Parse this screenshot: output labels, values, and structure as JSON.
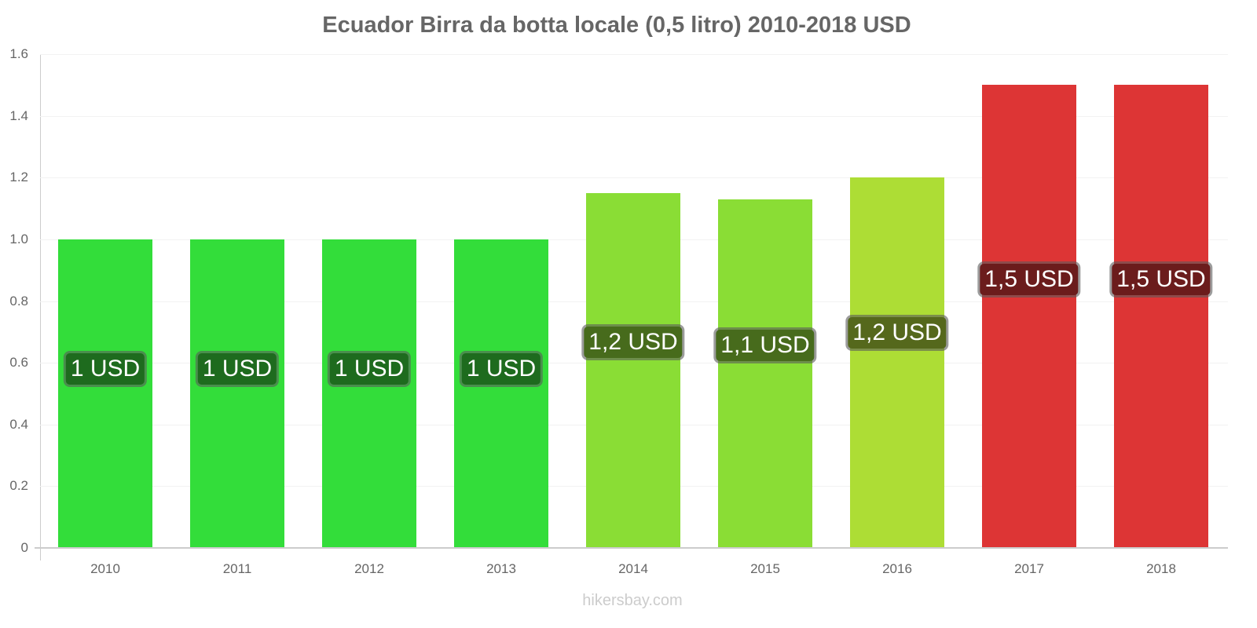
{
  "chart_data": {
    "type": "bar",
    "title": "Ecuador Birra da botta locale (0,5 litro) 2010-2018 USD",
    "xlabel": "",
    "ylabel": "",
    "ylim": [
      0,
      1.6
    ],
    "yticks": [
      "0",
      "0.2",
      "0.4",
      "0.6",
      "0.8",
      "1.0",
      "1.2",
      "1.4",
      "1.6"
    ],
    "grid": true,
    "legend": null,
    "categories": [
      "2010",
      "2011",
      "2012",
      "2013",
      "2014",
      "2015",
      "2016",
      "2017",
      "2018"
    ],
    "values": [
      1.0,
      1.0,
      1.0,
      1.0,
      1.15,
      1.13,
      1.2,
      1.5,
      1.5
    ],
    "data_labels": [
      "1 USD",
      "1 USD",
      "1 USD",
      "1 USD",
      "1,2 USD",
      "1,1 USD",
      "1,2 USD",
      "1,5 USD",
      "1,5 USD"
    ],
    "bar_colors": [
      "#33dd3a",
      "#33dd3a",
      "#33dd3a",
      "#33dd3a",
      "#8add35",
      "#8add35",
      "#addd35",
      "#dd3535",
      "#dd3535"
    ],
    "label_bg_colors": [
      "#1e6b1e",
      "#1e6b1e",
      "#1e6b1e",
      "#1e6b1e",
      "#476b1c",
      "#476b1c",
      "#55681c",
      "#6b1c1c",
      "#6b1c1c"
    ]
  },
  "footer": "hikersbay.com"
}
